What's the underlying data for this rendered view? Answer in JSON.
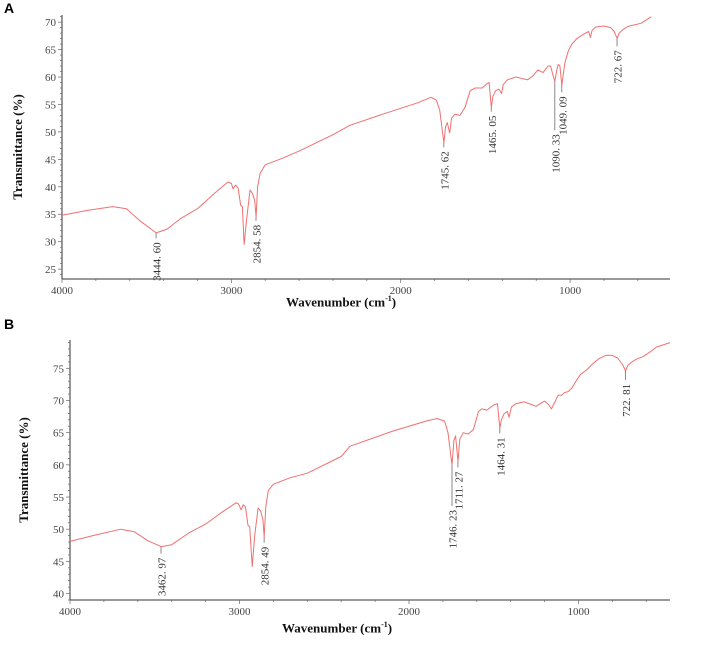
{
  "chart_data": [
    {
      "type": "line",
      "panel": "A",
      "xlabel_main": "Wavenumber (cm",
      "xlabel_sup": "-1",
      "xlabel_end": ")",
      "ylabel": "Transmittance (%)",
      "xlim": [
        4000,
        410
      ],
      "ylim": [
        23.2,
        71.3
      ],
      "xticks": [
        4000,
        3000,
        2000,
        1000
      ],
      "yticks": [
        25,
        30,
        35,
        40,
        45,
        50,
        55,
        60,
        65,
        70
      ],
      "color": "#f07070",
      "series": [
        {
          "name": "A",
          "points": [
            [
              4000,
              34.8
            ],
            [
              3850,
              35.7
            ],
            [
              3700,
              36.4
            ],
            [
              3620,
              36
            ],
            [
              3540,
              33.8
            ],
            [
              3444,
              31.6
            ],
            [
              3380,
              32.3
            ],
            [
              3300,
              34.2
            ],
            [
              3200,
              36
            ],
            [
              3100,
              38.8
            ],
            [
              3020,
              40.9
            ],
            [
              3000,
              40.6
            ],
            [
              2990,
              39.6
            ],
            [
              2975,
              40.3
            ],
            [
              2960,
              39.8
            ],
            [
              2945,
              36.6
            ],
            [
              2935,
              36.4
            ],
            [
              2925,
              29.5
            ],
            [
              2910,
              34
            ],
            [
              2890,
              39.4
            ],
            [
              2875,
              38.8
            ],
            [
              2862,
              37.5
            ],
            [
              2854,
              34.5
            ],
            [
              2845,
              40
            ],
            [
              2830,
              42.5
            ],
            [
              2800,
              44
            ],
            [
              2700,
              45.2
            ],
            [
              2600,
              46.5
            ],
            [
              2400,
              49.5
            ],
            [
              2300,
              51.2
            ],
            [
              2100,
              53.3
            ],
            [
              1900,
              55.3
            ],
            [
              1822,
              56.3
            ],
            [
              1790,
              55.8
            ],
            [
              1770,
              54
            ],
            [
              1745,
              48
            ],
            [
              1735,
              51
            ],
            [
              1725,
              51.7
            ],
            [
              1711,
              49.8
            ],
            [
              1700,
              52.5
            ],
            [
              1680,
              53.2
            ],
            [
              1650,
              53
            ],
            [
              1620,
              54.5
            ],
            [
              1590,
              57.5
            ],
            [
              1560,
              58
            ],
            [
              1520,
              58
            ],
            [
              1490,
              58.8
            ],
            [
              1478,
              59
            ],
            [
              1465,
              54.5
            ],
            [
              1455,
              56.5
            ],
            [
              1440,
              57.5
            ],
            [
              1420,
              57.8
            ],
            [
              1405,
              57
            ],
            [
              1395,
              58.6
            ],
            [
              1370,
              59.5
            ],
            [
              1320,
              60
            ],
            [
              1280,
              59.7
            ],
            [
              1250,
              59.5
            ],
            [
              1220,
              60.2
            ],
            [
              1190,
              61.3
            ],
            [
              1160,
              60.8
            ],
            [
              1130,
              62
            ],
            [
              1115,
              62
            ],
            [
              1100,
              60.2
            ],
            [
              1090,
              59.2
            ],
            [
              1080,
              61
            ],
            [
              1070,
              62.3
            ],
            [
              1060,
              62
            ],
            [
              1049,
              58.5
            ],
            [
              1040,
              60.5
            ],
            [
              1030,
              62.7
            ],
            [
              1010,
              64.8
            ],
            [
              990,
              66
            ],
            [
              960,
              67
            ],
            [
              920,
              67.8
            ],
            [
              890,
              68.3
            ],
            [
              880,
              67.2
            ],
            [
              870,
              68.5
            ],
            [
              850,
              69.1
            ],
            [
              800,
              69.3
            ],
            [
              760,
              69
            ],
            [
              740,
              68.3
            ],
            [
              722,
              67
            ],
            [
              710,
              68
            ],
            [
              690,
              68.6
            ],
            [
              660,
              69.2
            ],
            [
              620,
              69.5
            ],
            [
              580,
              69.8
            ],
            [
              540,
              70.6
            ],
            [
              521,
              71
            ]
          ]
        }
      ],
      "peaks": [
        {
          "label": "3444. 60",
          "x": 3444.6,
          "y": 31.6,
          "line_to": 30.6
        },
        {
          "label": "2854. 58",
          "x": 2854.58,
          "y": 34.5,
          "line_to": 33.8
        },
        {
          "label": "1745. 62",
          "x": 1745.62,
          "y": 48,
          "line_to": 47.2
        },
        {
          "label": "1465. 05",
          "x": 1465.05,
          "y": 54.5,
          "line_to": 53.7
        },
        {
          "label": "1090. 33",
          "x": 1090.33,
          "y": 59.2,
          "line_to": 50.3
        },
        {
          "label": "1049. 09",
          "x": 1049.09,
          "y": 58.5,
          "line_to": 57.2
        },
        {
          "label": "722. 67",
          "x": 722.67,
          "y": 67,
          "line_to": 65.6
        }
      ]
    },
    {
      "type": "line",
      "panel": "B",
      "xlabel_main": "Wavenumber (cm",
      "xlabel_sup": "-1",
      "xlabel_end": ")",
      "ylabel": "Transmittance (%)",
      "xlim": [
        4000,
        460
      ],
      "ylim": [
        39,
        79.4
      ],
      "xticks": [
        4000,
        3000,
        2000,
        1000
      ],
      "yticks": [
        40,
        45,
        50,
        55,
        60,
        65,
        70,
        75
      ],
      "color": "#f07070",
      "series": [
        {
          "name": "B",
          "points": [
            [
              4000,
              48.1
            ],
            [
              3850,
              49.1
            ],
            [
              3700,
              50
            ],
            [
              3620,
              49.6
            ],
            [
              3540,
              48.2
            ],
            [
              3462,
              47.3
            ],
            [
              3400,
              47.6
            ],
            [
              3300,
              49.4
            ],
            [
              3200,
              50.8
            ],
            [
              3100,
              52.7
            ],
            [
              3020,
              54.1
            ],
            [
              3005,
              53.9
            ],
            [
              2990,
              53
            ],
            [
              2978,
              53.8
            ],
            [
              2965,
              53.5
            ],
            [
              2950,
              50.6
            ],
            [
              2940,
              50.4
            ],
            [
              2925,
              44.2
            ],
            [
              2910,
              49
            ],
            [
              2890,
              53.3
            ],
            [
              2875,
              52.8
            ],
            [
              2862,
              51.5
            ],
            [
              2854,
              48.8
            ],
            [
              2845,
              53.5
            ],
            [
              2830,
              56
            ],
            [
              2800,
              57
            ],
            [
              2700,
              58
            ],
            [
              2600,
              58.7
            ],
            [
              2400,
              61.3
            ],
            [
              2348,
              62.9
            ],
            [
              2100,
              65.2
            ],
            [
              1900,
              66.8
            ],
            [
              1835,
              67.2
            ],
            [
              1790,
              66.8
            ],
            [
              1770,
              65
            ],
            [
              1746,
              60
            ],
            [
              1735,
              63.8
            ],
            [
              1725,
              64.5
            ],
            [
              1711,
              60.5
            ],
            [
              1700,
              64
            ],
            [
              1680,
              65
            ],
            [
              1650,
              64.8
            ],
            [
              1620,
              65.5
            ],
            [
              1590,
              68.3
            ],
            [
              1570,
              68.7
            ],
            [
              1540,
              68.5
            ],
            [
              1500,
              69.3
            ],
            [
              1478,
              69.5
            ],
            [
              1464,
              65.7
            ],
            [
              1455,
              67
            ],
            [
              1440,
              67.9
            ],
            [
              1420,
              68.3
            ],
            [
              1410,
              67.4
            ],
            [
              1395,
              69
            ],
            [
              1370,
              69.5
            ],
            [
              1320,
              69.8
            ],
            [
              1280,
              69.4
            ],
            [
              1250,
              69.1
            ],
            [
              1220,
              69.6
            ],
            [
              1200,
              69.9
            ],
            [
              1175,
              69.3
            ],
            [
              1160,
              68.7
            ],
            [
              1140,
              69.7
            ],
            [
              1120,
              70.8
            ],
            [
              1100,
              70.8
            ],
            [
              1085,
              71.2
            ],
            [
              1060,
              71.4
            ],
            [
              1040,
              71.9
            ],
            [
              1010,
              73.2
            ],
            [
              990,
              74
            ],
            [
              950,
              74.8
            ],
            [
              920,
              75.6
            ],
            [
              880,
              76.5
            ],
            [
              840,
              77
            ],
            [
              800,
              77
            ],
            [
              770,
              76.6
            ],
            [
              740,
              75.6
            ],
            [
              722,
              74.6
            ],
            [
              710,
              75.4
            ],
            [
              690,
              75.9
            ],
            [
              660,
              76.4
            ],
            [
              620,
              76.8
            ],
            [
              580,
              77.5
            ],
            [
              540,
              78.3
            ],
            [
              460,
              79
            ]
          ]
        }
      ],
      "peaks": [
        {
          "label": "3462. 97",
          "x": 3462.97,
          "y": 47.3,
          "line_to": 46.2
        },
        {
          "label": "2854. 49",
          "x": 2854.49,
          "y": 48.8,
          "line_to": 47.9
        },
        {
          "label": "1746. 23",
          "x": 1746.23,
          "y": 60,
          "line_to": 53.6
        },
        {
          "label": "1711. 27",
          "x": 1711.27,
          "y": 60.5,
          "line_to": 59.6
        },
        {
          "label": "1464. 31",
          "x": 1464.31,
          "y": 65.7,
          "line_to": 64.9
        },
        {
          "label": "722. 81",
          "x": 722.81,
          "y": 74.6,
          "line_to": 73.2
        }
      ]
    }
  ]
}
